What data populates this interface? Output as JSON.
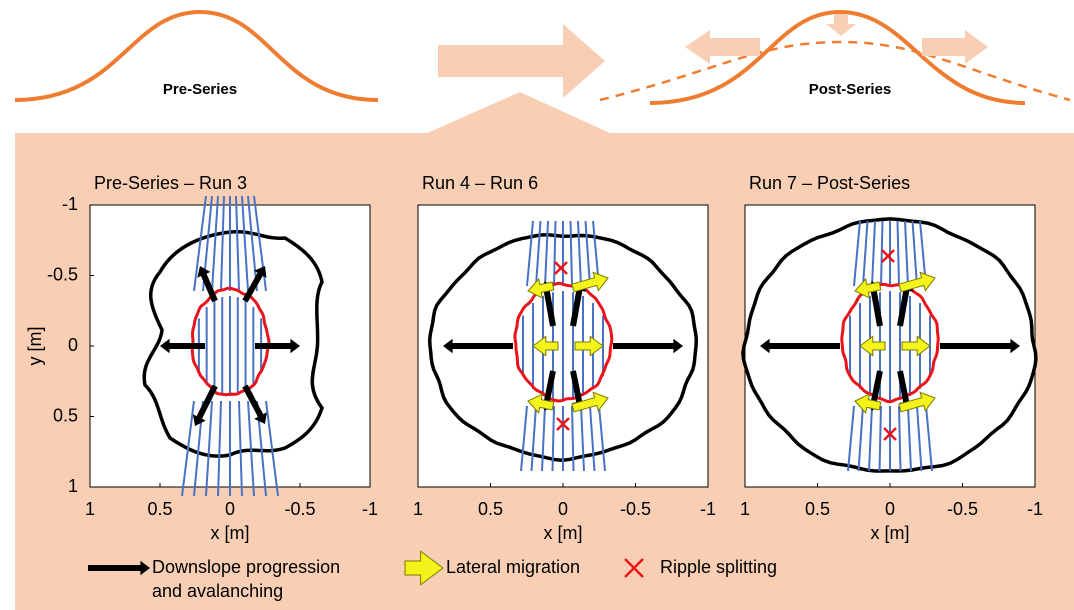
{
  "header": {
    "pre_label": "Pre-Series",
    "post_label": "Post-Series"
  },
  "panels": [
    {
      "title": "Pre-Series – Run 3",
      "x_label": "x [m]",
      "xlim": [
        1,
        -1
      ],
      "xticks": [
        1,
        0.5,
        0,
        -0.5,
        -1
      ],
      "y_label": "y [m]",
      "ylim": [
        -1,
        1
      ],
      "yticks": [
        -1,
        -0.5,
        0,
        0.5,
        1
      ]
    },
    {
      "title": "Run 4 – Run 6",
      "x_label": "x [m]",
      "xlim": [
        1,
        -1
      ],
      "xticks": [
        1,
        0.5,
        0,
        -0.5,
        -1
      ],
      "ylim": [
        -1,
        1
      ]
    },
    {
      "title": "Run 7 – Post-Series",
      "x_label": "x [m]",
      "xlim": [
        1,
        -1
      ],
      "xticks": [
        1,
        0.5,
        0,
        -0.5,
        -1
      ],
      "ylim": [
        -1,
        1
      ]
    }
  ],
  "legend": {
    "items": [
      {
        "label_lines": [
          "Downslope progression",
          "and avalanching"
        ]
      },
      {
        "label_lines": [
          "Lateral migration"
        ]
      },
      {
        "label_lines": [
          "Ripple splitting"
        ]
      }
    ]
  }
}
